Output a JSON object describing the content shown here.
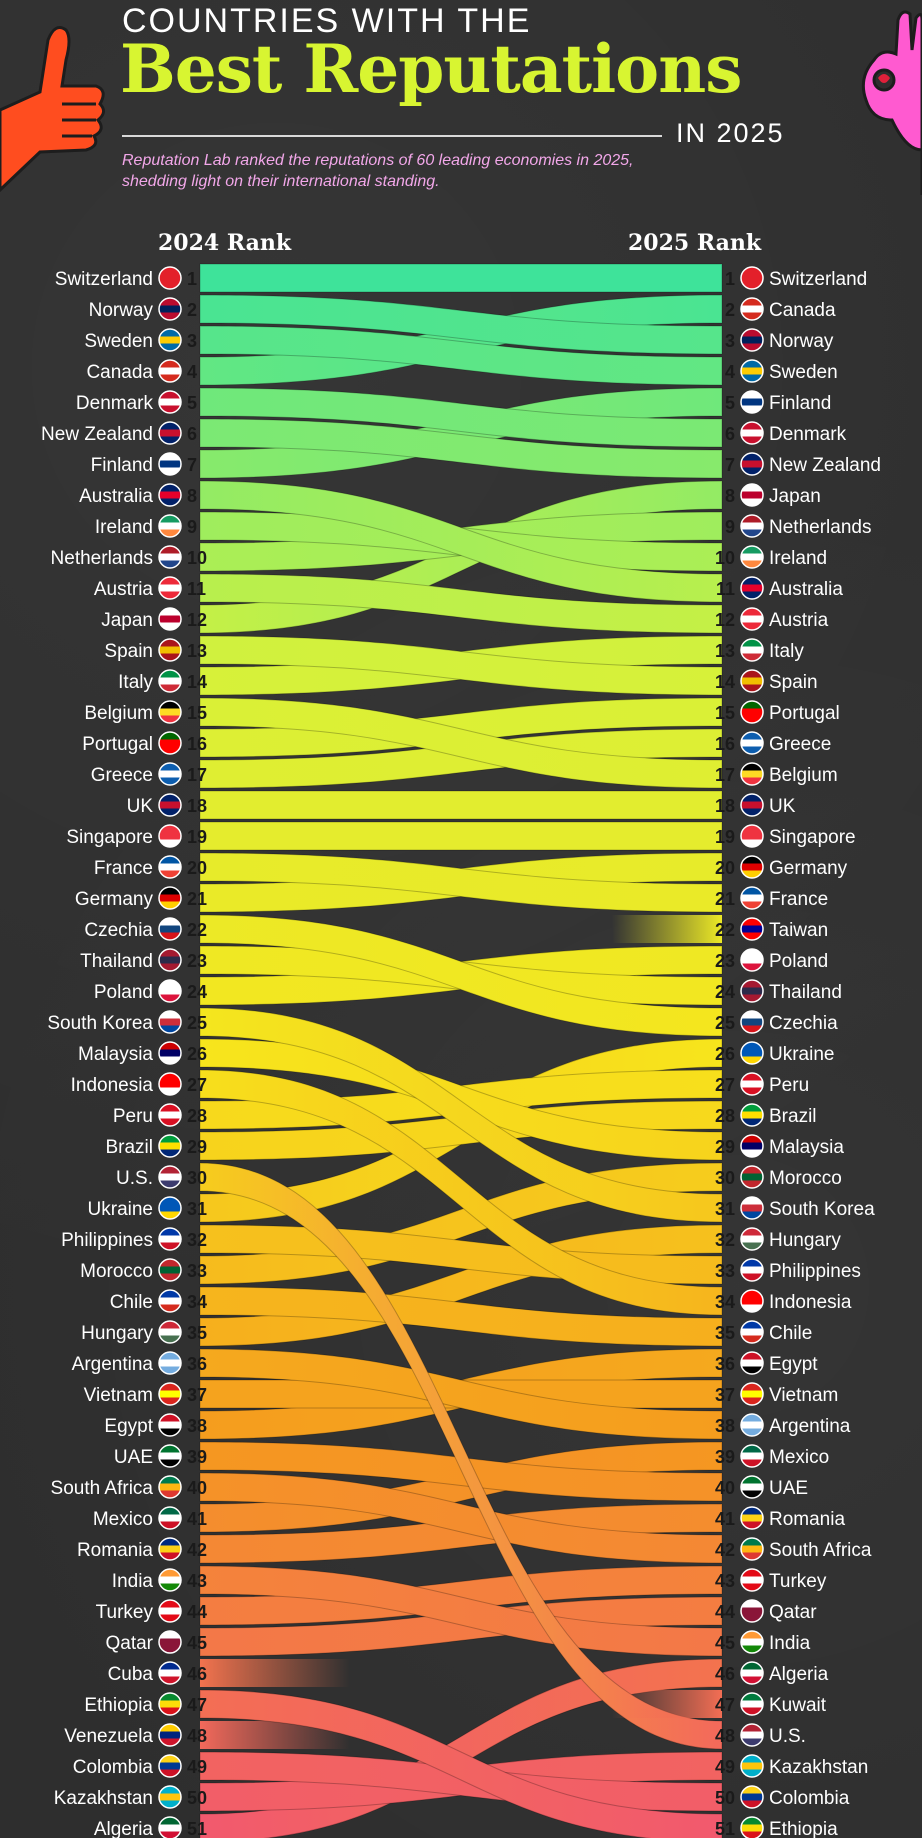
{
  "header": {
    "title_top": "COUNTRIES WITH THE",
    "title_main": "Best Reputations",
    "title_year": "IN 2025",
    "subtitle": "Reputation Lab ranked the reputations of 60 leading economies in 2025, shedding light on their international standing."
  },
  "chart_data": {
    "type": "bump",
    "left_header": "2024 Rank",
    "right_header": "2025 Rank",
    "left": [
      {
        "rank": 1,
        "country": "Switzerland"
      },
      {
        "rank": 2,
        "country": "Norway"
      },
      {
        "rank": 3,
        "country": "Sweden"
      },
      {
        "rank": 4,
        "country": "Canada"
      },
      {
        "rank": 5,
        "country": "Denmark"
      },
      {
        "rank": 6,
        "country": "New Zealand"
      },
      {
        "rank": 7,
        "country": "Finland"
      },
      {
        "rank": 8,
        "country": "Australia"
      },
      {
        "rank": 9,
        "country": "Ireland"
      },
      {
        "rank": 10,
        "country": "Netherlands"
      },
      {
        "rank": 11,
        "country": "Austria"
      },
      {
        "rank": 12,
        "country": "Japan"
      },
      {
        "rank": 13,
        "country": "Spain"
      },
      {
        "rank": 14,
        "country": "Italy"
      },
      {
        "rank": 15,
        "country": "Belgium"
      },
      {
        "rank": 16,
        "country": "Portugal"
      },
      {
        "rank": 17,
        "country": "Greece"
      },
      {
        "rank": 18,
        "country": "UK"
      },
      {
        "rank": 19,
        "country": "Singapore"
      },
      {
        "rank": 20,
        "country": "France"
      },
      {
        "rank": 21,
        "country": "Germany"
      },
      {
        "rank": 22,
        "country": "Czechia"
      },
      {
        "rank": 23,
        "country": "Thailand"
      },
      {
        "rank": 24,
        "country": "Poland"
      },
      {
        "rank": 25,
        "country": "South Korea"
      },
      {
        "rank": 26,
        "country": "Malaysia"
      },
      {
        "rank": 27,
        "country": "Indonesia"
      },
      {
        "rank": 28,
        "country": "Peru"
      },
      {
        "rank": 29,
        "country": "Brazil"
      },
      {
        "rank": 30,
        "country": "U.S."
      },
      {
        "rank": 31,
        "country": "Ukraine"
      },
      {
        "rank": 32,
        "country": "Philippines"
      },
      {
        "rank": 33,
        "country": "Morocco"
      },
      {
        "rank": 34,
        "country": "Chile"
      },
      {
        "rank": 35,
        "country": "Hungary"
      },
      {
        "rank": 36,
        "country": "Argentina"
      },
      {
        "rank": 37,
        "country": "Vietnam"
      },
      {
        "rank": 38,
        "country": "Egypt"
      },
      {
        "rank": 39,
        "country": "UAE"
      },
      {
        "rank": 40,
        "country": "South Africa"
      },
      {
        "rank": 41,
        "country": "Mexico"
      },
      {
        "rank": 42,
        "country": "Romania"
      },
      {
        "rank": 43,
        "country": "India"
      },
      {
        "rank": 44,
        "country": "Turkey"
      },
      {
        "rank": 45,
        "country": "Qatar"
      },
      {
        "rank": 46,
        "country": "Cuba"
      },
      {
        "rank": 47,
        "country": "Ethiopia"
      },
      {
        "rank": 48,
        "country": "Venezuela"
      },
      {
        "rank": 49,
        "country": "Colombia"
      },
      {
        "rank": 50,
        "country": "Kazakhstan"
      },
      {
        "rank": 51,
        "country": "Algeria"
      }
    ],
    "right": [
      {
        "rank": 1,
        "country": "Switzerland"
      },
      {
        "rank": 2,
        "country": "Canada"
      },
      {
        "rank": 3,
        "country": "Norway"
      },
      {
        "rank": 4,
        "country": "Sweden"
      },
      {
        "rank": 5,
        "country": "Finland"
      },
      {
        "rank": 6,
        "country": "Denmark"
      },
      {
        "rank": 7,
        "country": "New Zealand"
      },
      {
        "rank": 8,
        "country": "Japan"
      },
      {
        "rank": 9,
        "country": "Netherlands"
      },
      {
        "rank": 10,
        "country": "Ireland"
      },
      {
        "rank": 11,
        "country": "Australia"
      },
      {
        "rank": 12,
        "country": "Austria"
      },
      {
        "rank": 13,
        "country": "Italy"
      },
      {
        "rank": 14,
        "country": "Spain"
      },
      {
        "rank": 15,
        "country": "Portugal"
      },
      {
        "rank": 16,
        "country": "Greece"
      },
      {
        "rank": 17,
        "country": "Belgium"
      },
      {
        "rank": 18,
        "country": "UK"
      },
      {
        "rank": 19,
        "country": "Singapore"
      },
      {
        "rank": 20,
        "country": "Germany"
      },
      {
        "rank": 21,
        "country": "France"
      },
      {
        "rank": 22,
        "country": "Taiwan"
      },
      {
        "rank": 23,
        "country": "Poland"
      },
      {
        "rank": 24,
        "country": "Thailand"
      },
      {
        "rank": 25,
        "country": "Czechia"
      },
      {
        "rank": 26,
        "country": "Ukraine"
      },
      {
        "rank": 27,
        "country": "Peru"
      },
      {
        "rank": 28,
        "country": "Brazil"
      },
      {
        "rank": 29,
        "country": "Malaysia"
      },
      {
        "rank": 30,
        "country": "Morocco"
      },
      {
        "rank": 31,
        "country": "South Korea"
      },
      {
        "rank": 32,
        "country": "Hungary"
      },
      {
        "rank": 33,
        "country": "Philippines"
      },
      {
        "rank": 34,
        "country": "Indonesia"
      },
      {
        "rank": 35,
        "country": "Chile"
      },
      {
        "rank": 36,
        "country": "Egypt"
      },
      {
        "rank": 37,
        "country": "Vietnam"
      },
      {
        "rank": 38,
        "country": "Argentina"
      },
      {
        "rank": 39,
        "country": "Mexico"
      },
      {
        "rank": 40,
        "country": "UAE"
      },
      {
        "rank": 41,
        "country": "Romania"
      },
      {
        "rank": 42,
        "country": "South Africa"
      },
      {
        "rank": 43,
        "country": "Turkey"
      },
      {
        "rank": 44,
        "country": "Qatar"
      },
      {
        "rank": 45,
        "country": "India"
      },
      {
        "rank": 46,
        "country": "Algeria"
      },
      {
        "rank": 47,
        "country": "Kuwait"
      },
      {
        "rank": 48,
        "country": "U.S."
      },
      {
        "rank": 49,
        "country": "Kazakhstan"
      },
      {
        "rank": 50,
        "country": "Colombia"
      },
      {
        "rank": 51,
        "country": "Ethiopia"
      }
    ],
    "colors": {
      "top": "#3ee39a",
      "upper": "#d6f23a",
      "middle": "#f7e51c",
      "lower": "#f59a1e",
      "bottom": "#f2596e"
    }
  },
  "flags": {
    "Switzerland": [
      "#e3202a",
      "#e3202a",
      "#e3202a"
    ],
    "Norway": [
      "#ba0c2f",
      "#00205b",
      "#ba0c2f"
    ],
    "Sweden": [
      "#006aa7",
      "#fecc02",
      "#006aa7"
    ],
    "Canada": [
      "#d52b1e",
      "#ffffff",
      "#d52b1e"
    ],
    "Denmark": [
      "#c8102e",
      "#ffffff",
      "#c8102e"
    ],
    "New Zealand": [
      "#012169",
      "#c8102e",
      "#012169"
    ],
    "Finland": [
      "#ffffff",
      "#003580",
      "#ffffff"
    ],
    "Australia": [
      "#012169",
      "#e4002b",
      "#012169"
    ],
    "Ireland": [
      "#169b62",
      "#ffffff",
      "#ff883e"
    ],
    "Netherlands": [
      "#ae1c28",
      "#ffffff",
      "#21468b"
    ],
    "Austria": [
      "#ed2939",
      "#ffffff",
      "#ed2939"
    ],
    "Japan": [
      "#ffffff",
      "#bc002d",
      "#ffffff"
    ],
    "Spain": [
      "#aa151b",
      "#f1bf00",
      "#aa151b"
    ],
    "Italy": [
      "#009246",
      "#ffffff",
      "#ce2b37"
    ],
    "Belgium": [
      "#000000",
      "#fdda24",
      "#ef3340"
    ],
    "Portugal": [
      "#006600",
      "#ff0000",
      "#ff0000"
    ],
    "Greece": [
      "#0d5eaf",
      "#ffffff",
      "#0d5eaf"
    ],
    "UK": [
      "#012169",
      "#c8102e",
      "#012169"
    ],
    "Singapore": [
      "#ef3340",
      "#ef3340",
      "#ffffff"
    ],
    "France": [
      "#0055a4",
      "#ffffff",
      "#ef4135"
    ],
    "Germany": [
      "#000000",
      "#dd0000",
      "#ffce00"
    ],
    "Czechia": [
      "#ffffff",
      "#11457e",
      "#d7141a"
    ],
    "Thailand": [
      "#a51931",
      "#2d2a4a",
      "#a51931"
    ],
    "Poland": [
      "#ffffff",
      "#ffffff",
      "#dc143c"
    ],
    "South Korea": [
      "#ffffff",
      "#cd2e3a",
      "#0047a0"
    ],
    "Malaysia": [
      "#cc0001",
      "#010066",
      "#ffffff"
    ],
    "Indonesia": [
      "#ff0000",
      "#ff0000",
      "#ffffff"
    ],
    "Peru": [
      "#d91023",
      "#ffffff",
      "#d91023"
    ],
    "Brazil": [
      "#009c3b",
      "#ffdf00",
      "#002776"
    ],
    "U.S.": [
      "#b22234",
      "#ffffff",
      "#3c3b6e"
    ],
    "Ukraine": [
      "#0057b7",
      "#0057b7",
      "#ffd700"
    ],
    "Philippines": [
      "#0038a8",
      "#ffffff",
      "#ce1126"
    ],
    "Morocco": [
      "#c1272d",
      "#006233",
      "#c1272d"
    ],
    "Chile": [
      "#0039a6",
      "#ffffff",
      "#d52b1e"
    ],
    "Hungary": [
      "#ce2939",
      "#ffffff",
      "#477050"
    ],
    "Argentina": [
      "#74acdf",
      "#ffffff",
      "#74acdf"
    ],
    "Vietnam": [
      "#da251d",
      "#ffff00",
      "#da251d"
    ],
    "Egypt": [
      "#ce1126",
      "#ffffff",
      "#000000"
    ],
    "UAE": [
      "#00732f",
      "#ffffff",
      "#000000"
    ],
    "South Africa": [
      "#007a4d",
      "#ffb612",
      "#de3831"
    ],
    "Mexico": [
      "#006847",
      "#ffffff",
      "#ce1126"
    ],
    "Romania": [
      "#002b7f",
      "#fcd116",
      "#ce1126"
    ],
    "India": [
      "#ff9933",
      "#ffffff",
      "#138808"
    ],
    "Turkey": [
      "#e30a17",
      "#ffffff",
      "#e30a17"
    ],
    "Qatar": [
      "#ffffff",
      "#8a1538",
      "#8a1538"
    ],
    "Cuba": [
      "#002a8f",
      "#ffffff",
      "#cf142b"
    ],
    "Ethiopia": [
      "#078930",
      "#fcdd09",
      "#da121a"
    ],
    "Venezuela": [
      "#ffcc00",
      "#00247d",
      "#cf142b"
    ],
    "Colombia": [
      "#fcd116",
      "#003893",
      "#ce1126"
    ],
    "Kazakhstan": [
      "#00afca",
      "#fec50c",
      "#00afca"
    ],
    "Algeria": [
      "#006633",
      "#ffffff",
      "#d21034"
    ],
    "Taiwan": [
      "#fe0000",
      "#000095",
      "#fe0000"
    ],
    "Kuwait": [
      "#007a3d",
      "#ffffff",
      "#ce1126"
    ]
  }
}
